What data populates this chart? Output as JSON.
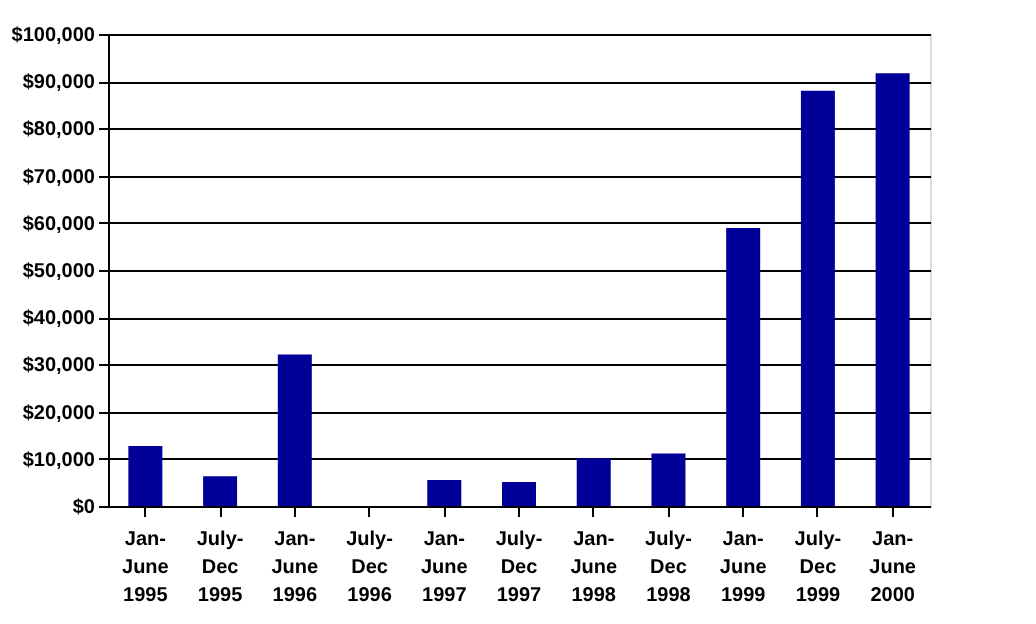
{
  "chart_data": {
    "type": "bar",
    "categories": [
      "Jan- June 1995",
      "July- Dec 1995",
      "Jan- June 1996",
      "July- Dec 1996",
      "Jan- June 1997",
      "July- Dec 1997",
      "Jan- June 1998",
      "July- Dec 1998",
      "Jan- June 1999",
      "July- Dec 1999",
      "Jan- June 2000"
    ],
    "values": [
      12700,
      6300,
      32100,
      0,
      5500,
      5100,
      10100,
      11100,
      58900,
      88000,
      91700
    ],
    "color": "#000099",
    "ylim": [
      0,
      100000
    ],
    "yticks": [
      {
        "value": 0,
        "label": "$0"
      },
      {
        "value": 10000,
        "label": "$10,000"
      },
      {
        "value": 20000,
        "label": "$20,000"
      },
      {
        "value": 30000,
        "label": "$30,000"
      },
      {
        "value": 40000,
        "label": "$40,000"
      },
      {
        "value": 50000,
        "label": "$50,000"
      },
      {
        "value": 60000,
        "label": "$60,000"
      },
      {
        "value": 70000,
        "label": "$70,000"
      },
      {
        "value": 80000,
        "label": "$80,000"
      },
      {
        "value": 90000,
        "label": "$90,000"
      },
      {
        "value": 100000,
        "label": "$100,000"
      }
    ],
    "grid": "y"
  }
}
